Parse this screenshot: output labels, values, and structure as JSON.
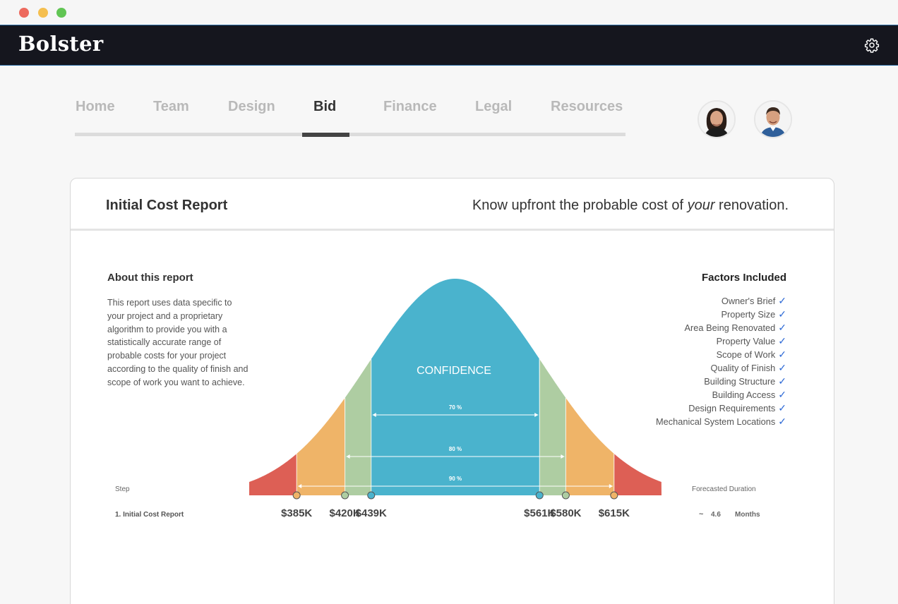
{
  "window": {
    "controls": [
      "close",
      "minimize",
      "maximize"
    ]
  },
  "app": {
    "name": "Bolster",
    "settings_icon": "gear-icon"
  },
  "tabs": [
    {
      "label": "Home",
      "active": false
    },
    {
      "label": "Team",
      "active": false
    },
    {
      "label": "Design",
      "active": false
    },
    {
      "label": "Bid",
      "active": true
    },
    {
      "label": "Finance",
      "active": false
    },
    {
      "label": "Legal",
      "active": false
    },
    {
      "label": "Resources",
      "active": false
    }
  ],
  "avatars": [
    "team-member-avatar-woman",
    "team-member-avatar-man"
  ],
  "card": {
    "title": "Initial Cost Report",
    "tagline_pre": "Know upfront the probable cost of ",
    "tagline_em": "your",
    "tagline_post": " renovation."
  },
  "about": {
    "title": "About this report",
    "body": "This report uses data specific to your project and a proprietary algorithm to provide you with a statistically accurate range of probable costs for your project according to the quality of finish and scope of work you want to achieve."
  },
  "factors": {
    "title": "Factors Included",
    "items": [
      "Owner's Brief",
      "Property Size",
      "Area Being Renovated",
      "Property Value",
      "Scope of Work",
      "Quality of Finish",
      "Building Structure",
      "Building Access",
      "Design Requirements",
      "Mechanical System Locations"
    ],
    "check": "✓"
  },
  "step": {
    "label": "Step",
    "value": "1. Initial Cost Report"
  },
  "forecast": {
    "label": "Forecasted Duration",
    "tilde": "~",
    "value": "4.6",
    "unit": "Months"
  },
  "chart_data": {
    "type": "area",
    "title": "",
    "center_label": "CONFIDENCE",
    "bands": [
      {
        "name": "70 %",
        "low": "$439K",
        "high": "$561K",
        "color": "#4ab3cd"
      },
      {
        "name": "80 %",
        "low": "$420K",
        "high": "$580K",
        "color": "#aecda2"
      },
      {
        "name": "90 %",
        "low": "$385K",
        "high": "$615K",
        "color": "#efb468"
      }
    ],
    "tail_color": "#dd5f55",
    "markers": [
      {
        "label": "$385K",
        "value": 385,
        "color": "#efb468"
      },
      {
        "label": "$420K",
        "value": 420,
        "color": "#aecda2"
      },
      {
        "label": "$439K",
        "value": 439,
        "color": "#4ab3cd"
      },
      {
        "label": "$561K",
        "value": 561,
        "color": "#4ab3cd"
      },
      {
        "label": "$580K",
        "value": 580,
        "color": "#aecda2"
      },
      {
        "label": "$615K",
        "value": 615,
        "color": "#efb468"
      }
    ]
  }
}
